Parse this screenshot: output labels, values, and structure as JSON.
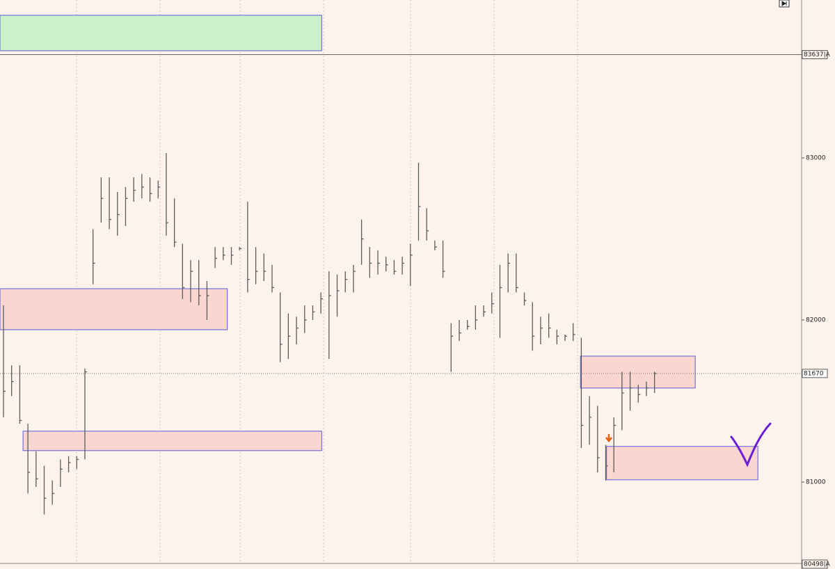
{
  "chart_data": {
    "type": "ohlc",
    "ylim": [
      80498,
      83974
    ],
    "xlim": [
      -0.43,
      97.9
    ],
    "yticks": [
      83000,
      82000,
      81000
    ],
    "price_lines": [
      {
        "value": 83637,
        "label": "83637|A"
      },
      81670,
      {
        "value": 80498,
        "label": "80498|A"
      }
    ],
    "color": "#5a5a5a",
    "high": [
      82090,
      81720,
      81720,
      81360,
      81190,
      81100,
      81010,
      81140,
      81160,
      81160,
      81700,
      82560,
      82880,
      82880,
      82790,
      82820,
      82880,
      82900,
      82880,
      82860,
      83030,
      82750,
      82470,
      82370,
      82370,
      82240,
      82450,
      82450,
      82450,
      82450,
      82730,
      82450,
      82410,
      82340,
      82170,
      82040,
      82020,
      82090,
      82090,
      82170,
      82300,
      82280,
      82300,
      82340,
      82620,
      82450,
      82430,
      82390,
      82370,
      82390,
      82470,
      82970,
      82690,
      82490,
      82490,
      81980,
      82000,
      82000,
      82090,
      82090,
      82170,
      82340,
      82410,
      82410,
      82170,
      82110,
      82020,
      82040,
      81940,
      81910,
      81980,
      81890,
      81530,
      81470,
      81230,
      81400,
      81680,
      81680,
      81600,
      81620,
      81680
    ],
    "low": [
      81400,
      81530,
      81360,
      80930,
      80970,
      80800,
      80860,
      80970,
      81060,
      81080,
      81140,
      82220,
      82600,
      82560,
      82520,
      82580,
      82730,
      82750,
      82730,
      82750,
      82520,
      82450,
      82130,
      82110,
      82090,
      82000,
      82320,
      82370,
      82340,
      82430,
      82170,
      82220,
      82240,
      82170,
      81740,
      81760,
      81850,
      81920,
      82000,
      82040,
      81760,
      82020,
      82170,
      82170,
      82340,
      82260,
      82280,
      82300,
      82280,
      82280,
      82210,
      82490,
      82490,
      82430,
      82260,
      81680,
      81870,
      81940,
      81940,
      82020,
      82040,
      81890,
      82170,
      82170,
      82090,
      81810,
      81850,
      81890,
      81850,
      81870,
      81870,
      81210,
      81230,
      81060,
      81010,
      81060,
      81320,
      81440,
      81490,
      81530,
      81550
    ],
    "close": [
      81560,
      81620,
      81380,
      81060,
      81020,
      80900,
      80930,
      81080,
      81120,
      81140,
      81680,
      82350,
      82750,
      82620,
      82650,
      82750,
      82800,
      82820,
      82780,
      82820,
      82600,
      82480,
      82200,
      82300,
      82150,
      82150,
      82380,
      82400,
      82400,
      82440,
      82250,
      82300,
      82300,
      82200,
      81850,
      81900,
      81950,
      82000,
      82050,
      82130,
      82150,
      82180,
      82250,
      82300,
      82500,
      82350,
      82350,
      82340,
      82300,
      82350,
      82400,
      82700,
      82550,
      82450,
      82300,
      81900,
      81920,
      81960,
      82000,
      82050,
      82100,
      82200,
      82350,
      82200,
      82120,
      81900,
      81950,
      81950,
      81900,
      81900,
      81910,
      81350,
      81400,
      81150,
      81100,
      81350,
      81550,
      81580,
      81540,
      81580,
      81670
    ],
    "zones": [
      {
        "start": -0.43,
        "end": 39.1,
        "top": 83880,
        "bottom": 83661,
        "color": "#ccf0c8"
      },
      {
        "start": -0.43,
        "end": 27.5,
        "top": 82193,
        "bottom": 81940,
        "color": "#f9d6d0"
      },
      {
        "start": 2.4,
        "end": 39.1,
        "top": 81314,
        "bottom": 81194,
        "color": "#f9d6d0"
      },
      {
        "start": 70.9,
        "end": 85.0,
        "top": 81777,
        "bottom": 81580,
        "color": "#f9d6d0"
      },
      {
        "start": 74.1,
        "end": 92.7,
        "top": 81220,
        "bottom": 81014,
        "color": "#f9d6d0"
      }
    ]
  }
}
